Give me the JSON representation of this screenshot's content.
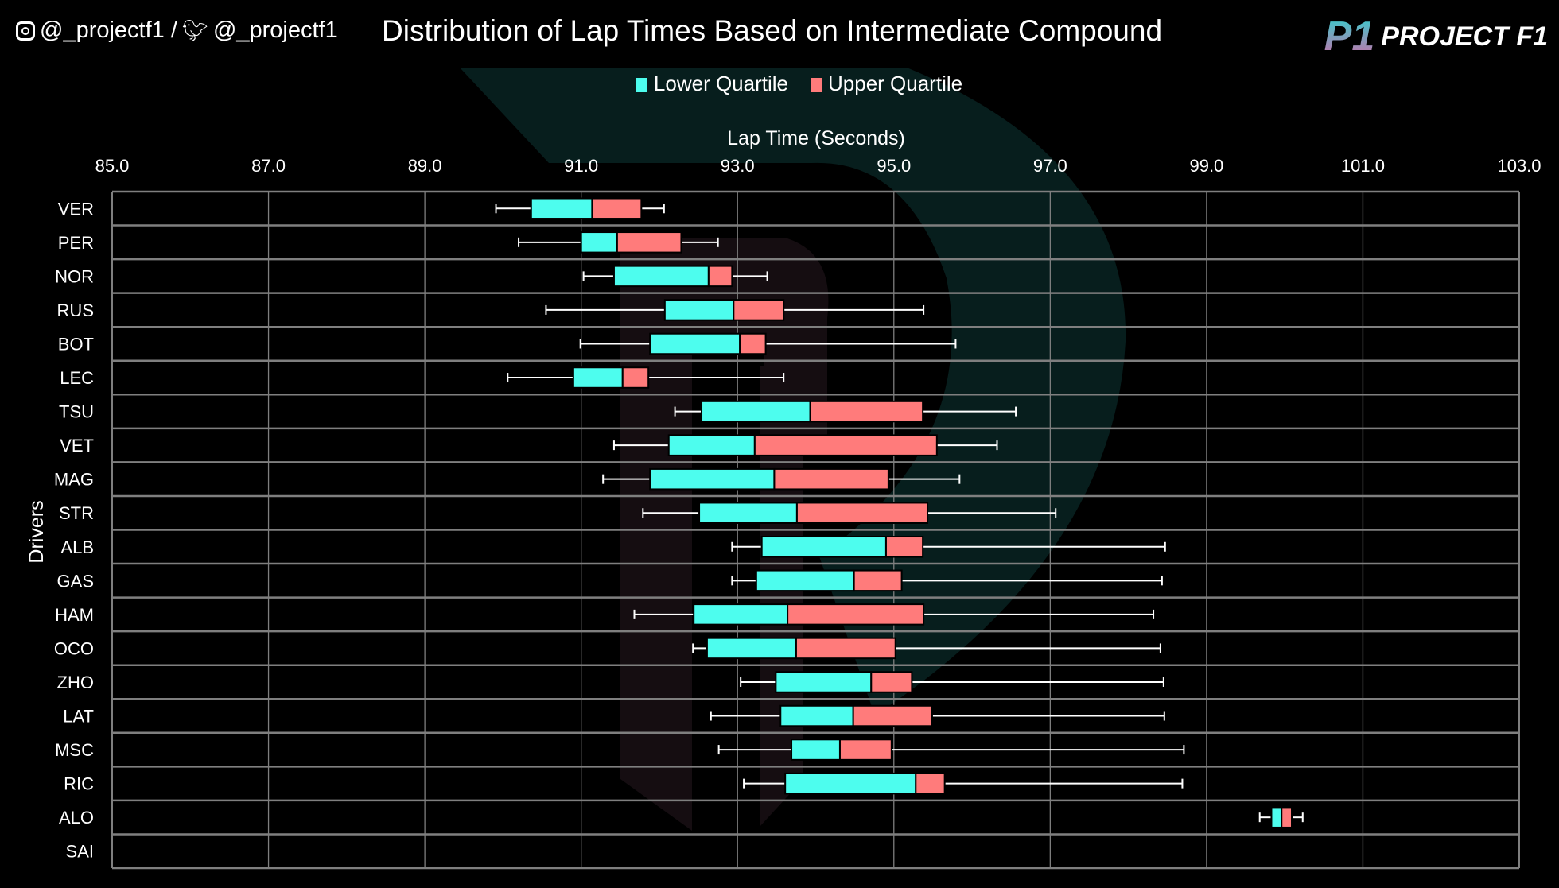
{
  "header": {
    "instagram_handle": "@_projectf1 /",
    "twitter_handle": "@_projectf1",
    "logo_mark": "P1",
    "logo_text": "PROJECT F1"
  },
  "colors": {
    "lower": "#4dfdee",
    "upper": "#ff7b7b",
    "whisker": "#ffffff",
    "grid": "#7f7f7f"
  },
  "chart_data": {
    "type": "box",
    "title": "Distribution of Lap Times Based on Intermediate Compound",
    "xlabel": "Lap Time (Seconds)",
    "ylabel": "Drivers",
    "xlim": [
      85.0,
      103.0
    ],
    "xticks": [
      "85.0",
      "87.0",
      "89.0",
      "91.0",
      "93.0",
      "95.0",
      "97.0",
      "99.0",
      "101.0",
      "103.0"
    ],
    "legend": [
      "Lower Quartile",
      "Upper Quartile"
    ],
    "legend_position": "top",
    "grid": true,
    "categories": [
      "VER",
      "PER",
      "NOR",
      "RUS",
      "BOT",
      "LEC",
      "TSU",
      "VET",
      "MAG",
      "STR",
      "ALB",
      "GAS",
      "HAM",
      "OCO",
      "ZHO",
      "LAT",
      "MSC",
      "RIC",
      "ALO",
      "SAI"
    ],
    "boxes": [
      {
        "min": 89.91,
        "q1": 90.36,
        "median": 91.14,
        "q3": 91.77,
        "max": 92.06
      },
      {
        "min": 90.2,
        "q1": 91.0,
        "median": 91.46,
        "q3": 92.28,
        "max": 92.75
      },
      {
        "min": 91.03,
        "q1": 91.42,
        "median": 92.63,
        "q3": 92.93,
        "max": 93.38
      },
      {
        "min": 90.55,
        "q1": 92.07,
        "median": 92.95,
        "q3": 93.59,
        "max": 95.38
      },
      {
        "min": 90.99,
        "q1": 91.88,
        "median": 93.03,
        "q3": 93.36,
        "max": 95.79
      },
      {
        "min": 90.06,
        "q1": 90.9,
        "median": 91.53,
        "q3": 91.86,
        "max": 93.59
      },
      {
        "min": 92.2,
        "q1": 92.54,
        "median": 93.93,
        "q3": 95.37,
        "max": 96.56
      },
      {
        "min": 91.42,
        "q1": 92.12,
        "median": 93.22,
        "q3": 95.55,
        "max": 96.32
      },
      {
        "min": 91.28,
        "q1": 91.88,
        "median": 93.47,
        "q3": 94.93,
        "max": 95.84
      },
      {
        "min": 91.79,
        "q1": 92.51,
        "median": 93.76,
        "q3": 95.43,
        "max": 97.07
      },
      {
        "min": 92.93,
        "q1": 93.31,
        "median": 94.9,
        "q3": 95.37,
        "max": 98.47
      },
      {
        "min": 92.93,
        "q1": 93.24,
        "median": 94.49,
        "q3": 95.1,
        "max": 98.43
      },
      {
        "min": 91.68,
        "q1": 92.44,
        "median": 93.64,
        "q3": 95.38,
        "max": 98.32
      },
      {
        "min": 92.43,
        "q1": 92.61,
        "median": 93.75,
        "q3": 95.02,
        "max": 98.41
      },
      {
        "min": 93.04,
        "q1": 93.49,
        "median": 94.71,
        "q3": 95.23,
        "max": 98.45
      },
      {
        "min": 92.66,
        "q1": 93.55,
        "median": 94.48,
        "q3": 95.49,
        "max": 98.46
      },
      {
        "min": 92.76,
        "q1": 93.69,
        "median": 94.31,
        "q3": 94.97,
        "max": 98.71
      },
      {
        "min": 93.08,
        "q1": 93.61,
        "median": 95.28,
        "q3": 95.65,
        "max": 98.69
      },
      {
        "min": 99.68,
        "q1": 99.83,
        "median": 99.96,
        "q3": 100.09,
        "max": 100.23
      },
      null
    ]
  }
}
